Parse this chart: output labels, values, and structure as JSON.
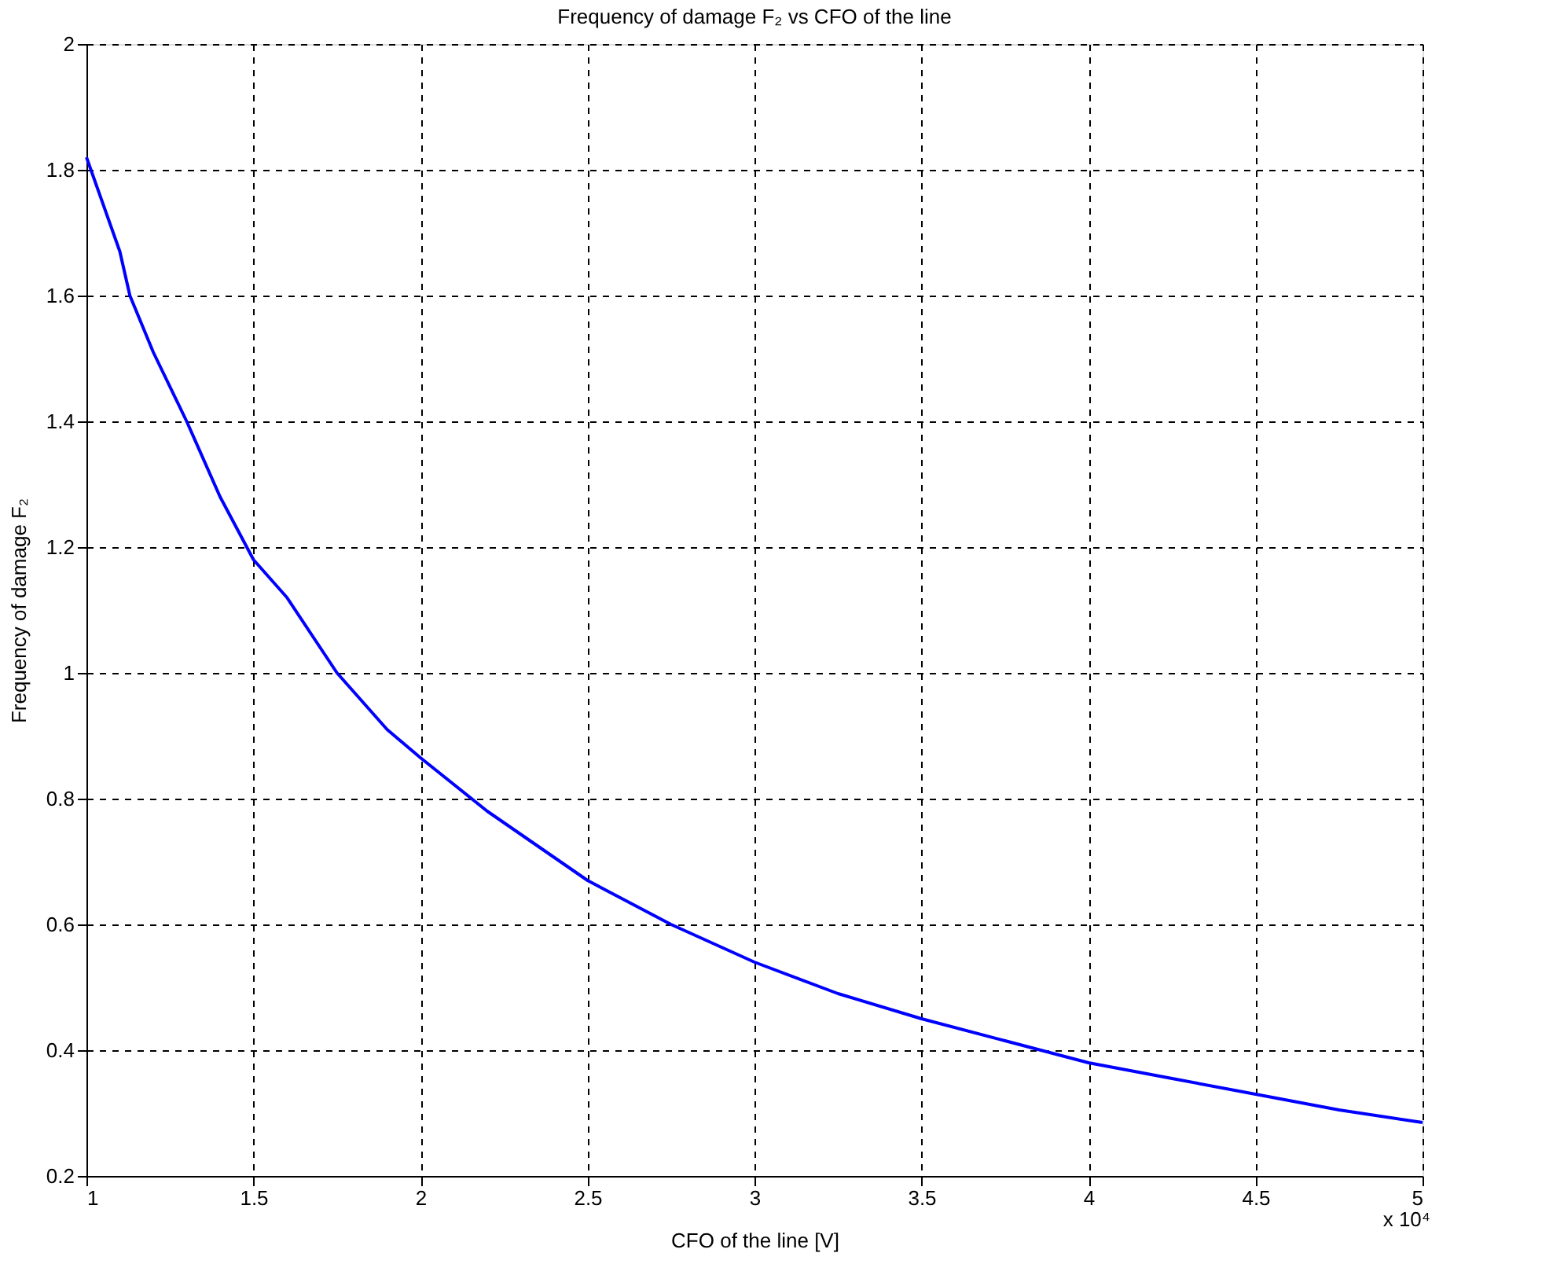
{
  "chart_data": {
    "type": "line",
    "title": "Frequency of damage F₂ vs CFO of the line",
    "xlabel": "CFO of the line [V]",
    "ylabel": "Frequency of damage F₂",
    "annotations": [
      "x 10⁴"
    ],
    "x": [
      1,
      1.1,
      1.13,
      1.2,
      1.3,
      1.4,
      1.5,
      1.6,
      1.75,
      1.9,
      2,
      2.2,
      2.5,
      2.75,
      3,
      3.25,
      3.5,
      3.75,
      4,
      4.25,
      4.5,
      4.75,
      5
    ],
    "series": [
      {
        "color": "#0000ff",
        "values": [
          1.82,
          1.67,
          1.6,
          1.51,
          1.4,
          1.28,
          1.18,
          1.12,
          1.0,
          0.91,
          0.865,
          0.78,
          0.67,
          0.6,
          0.54,
          0.49,
          0.45,
          0.415,
          0.38,
          0.355,
          0.33,
          0.305,
          0.285
        ]
      }
    ],
    "xlim": [
      1,
      5
    ],
    "xticks": [
      1,
      1.5,
      2,
      2.5,
      3,
      3.5,
      4,
      4.5,
      5
    ],
    "ylim": [
      0.2,
      2
    ],
    "yticks": [
      0.2,
      0.4,
      0.6,
      0.8,
      1,
      1.2,
      1.4,
      1.6,
      1.8,
      2
    ],
    "grid": true,
    "marker": "none",
    "line_style": "solid"
  }
}
